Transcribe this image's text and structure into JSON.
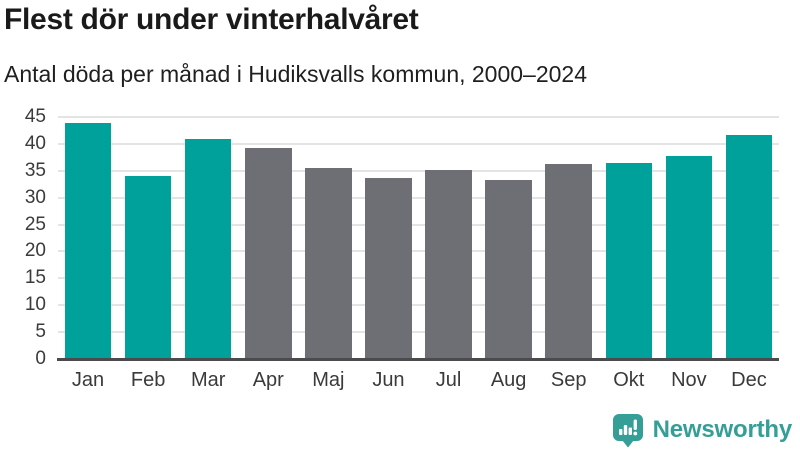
{
  "header": {
    "title": "Flest dör under vinterhalvåret",
    "subtitle": "Antal döda per månad i Hudiksvalls kommun, 2000–2024"
  },
  "chart_data": {
    "type": "bar",
    "title": "Flest dör under vinterhalvåret",
    "subtitle": "Antal döda per månad i Hudiksvalls kommun, 2000–2024",
    "categories": [
      "Jan",
      "Feb",
      "Mar",
      "Apr",
      "Maj",
      "Jun",
      "Jul",
      "Aug",
      "Sep",
      "Okt",
      "Nov",
      "Dec"
    ],
    "values": [
      43.9,
      34.1,
      40.9,
      39.2,
      35.6,
      33.6,
      35.2,
      33.2,
      36.2,
      36.4,
      37.7,
      41.7
    ],
    "highlighted": [
      true,
      true,
      true,
      false,
      false,
      false,
      false,
      false,
      false,
      true,
      true,
      true
    ],
    "xlabel": "",
    "ylabel": "",
    "ylim": [
      0,
      45
    ],
    "yticks": [
      0,
      5,
      10,
      15,
      20,
      25,
      30,
      35,
      40,
      45
    ],
    "grid": true,
    "legend": "none",
    "colors": {
      "highlight": "#00a09b",
      "default": "#6e6e75",
      "gridline": "#e4e4e4",
      "axis_line": "#4b4b4d",
      "tick_text": "#3b3b3b"
    }
  },
  "footer": {
    "brand": "Newsworthy",
    "brand_color": "#359e97",
    "logo_icon": "bar-chart-speech-bubble-icon"
  }
}
